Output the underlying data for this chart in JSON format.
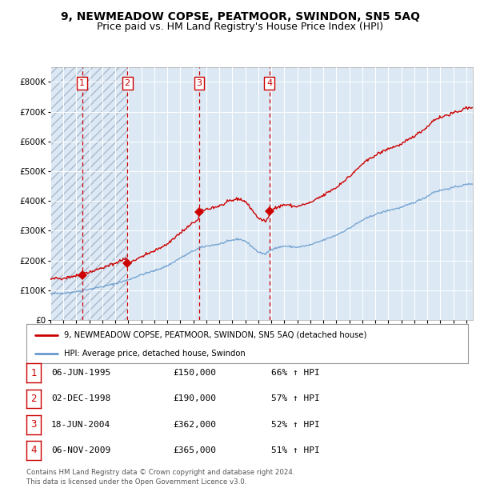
{
  "title": "9, NEWMEADOW COPSE, PEATMOOR, SWINDON, SN5 5AQ",
  "subtitle": "Price paid vs. HM Land Registry's House Price Index (HPI)",
  "red_label": "9, NEWMEADOW COPSE, PEATMOOR, SWINDON, SN5 5AQ (detached house)",
  "blue_label": "HPI: Average price, detached house, Swindon",
  "footer": "Contains HM Land Registry data © Crown copyright and database right 2024.\nThis data is licensed under the Open Government Licence v3.0.",
  "purchases": [
    {
      "num": 1,
      "date": "06-JUN-1995",
      "year": 1995.44,
      "price": 150000,
      "hpi_pct": "66% ↑ HPI"
    },
    {
      "num": 2,
      "date": "02-DEC-1998",
      "year": 1998.92,
      "price": 190000,
      "hpi_pct": "57% ↑ HPI"
    },
    {
      "num": 3,
      "date": "18-JUN-2004",
      "year": 2004.46,
      "price": 362000,
      "hpi_pct": "52% ↑ HPI"
    },
    {
      "num": 4,
      "date": "06-NOV-2009",
      "year": 2009.85,
      "price": 365000,
      "hpi_pct": "51% ↑ HPI"
    }
  ],
  "xmin": 1993.0,
  "xmax": 2025.5,
  "ymin": 0,
  "ymax": 850000,
  "yticks": [
    0,
    100000,
    200000,
    300000,
    400000,
    500000,
    600000,
    700000,
    800000
  ],
  "background_color": "#ffffff",
  "plot_bg_color": "#dce9f5",
  "hatch_color": "#aab8cc",
  "red_color": "#cc0000",
  "blue_color": "#6699cc",
  "grid_color": "#ffffff",
  "vline_color": "#cc0000",
  "blue_hpi_keypoints_x": [
    1993,
    1994,
    1995,
    1996,
    1997,
    1998,
    1999,
    2000,
    2001,
    2002,
    2003,
    2004,
    2004.5,
    2005,
    2006,
    2007,
    2007.5,
    2008,
    2009,
    2009.5,
    2010,
    2011,
    2012,
    2013,
    2014,
    2015,
    2016,
    2017,
    2018,
    2019,
    2020,
    2021,
    2022,
    2022.5,
    2023,
    2024,
    2025,
    2025.5
  ],
  "blue_hpi_keypoints_y": [
    88000,
    90000,
    95000,
    103000,
    112000,
    122000,
    135000,
    152000,
    165000,
    182000,
    208000,
    232000,
    242000,
    248000,
    255000,
    268000,
    272000,
    265000,
    228000,
    220000,
    238000,
    248000,
    244000,
    252000,
    268000,
    285000,
    308000,
    335000,
    355000,
    368000,
    378000,
    395000,
    415000,
    430000,
    435000,
    445000,
    455000,
    458000
  ],
  "noise_seed": 42,
  "noise_scale": 1500,
  "title_fontsize": 10,
  "subtitle_fontsize": 9
}
